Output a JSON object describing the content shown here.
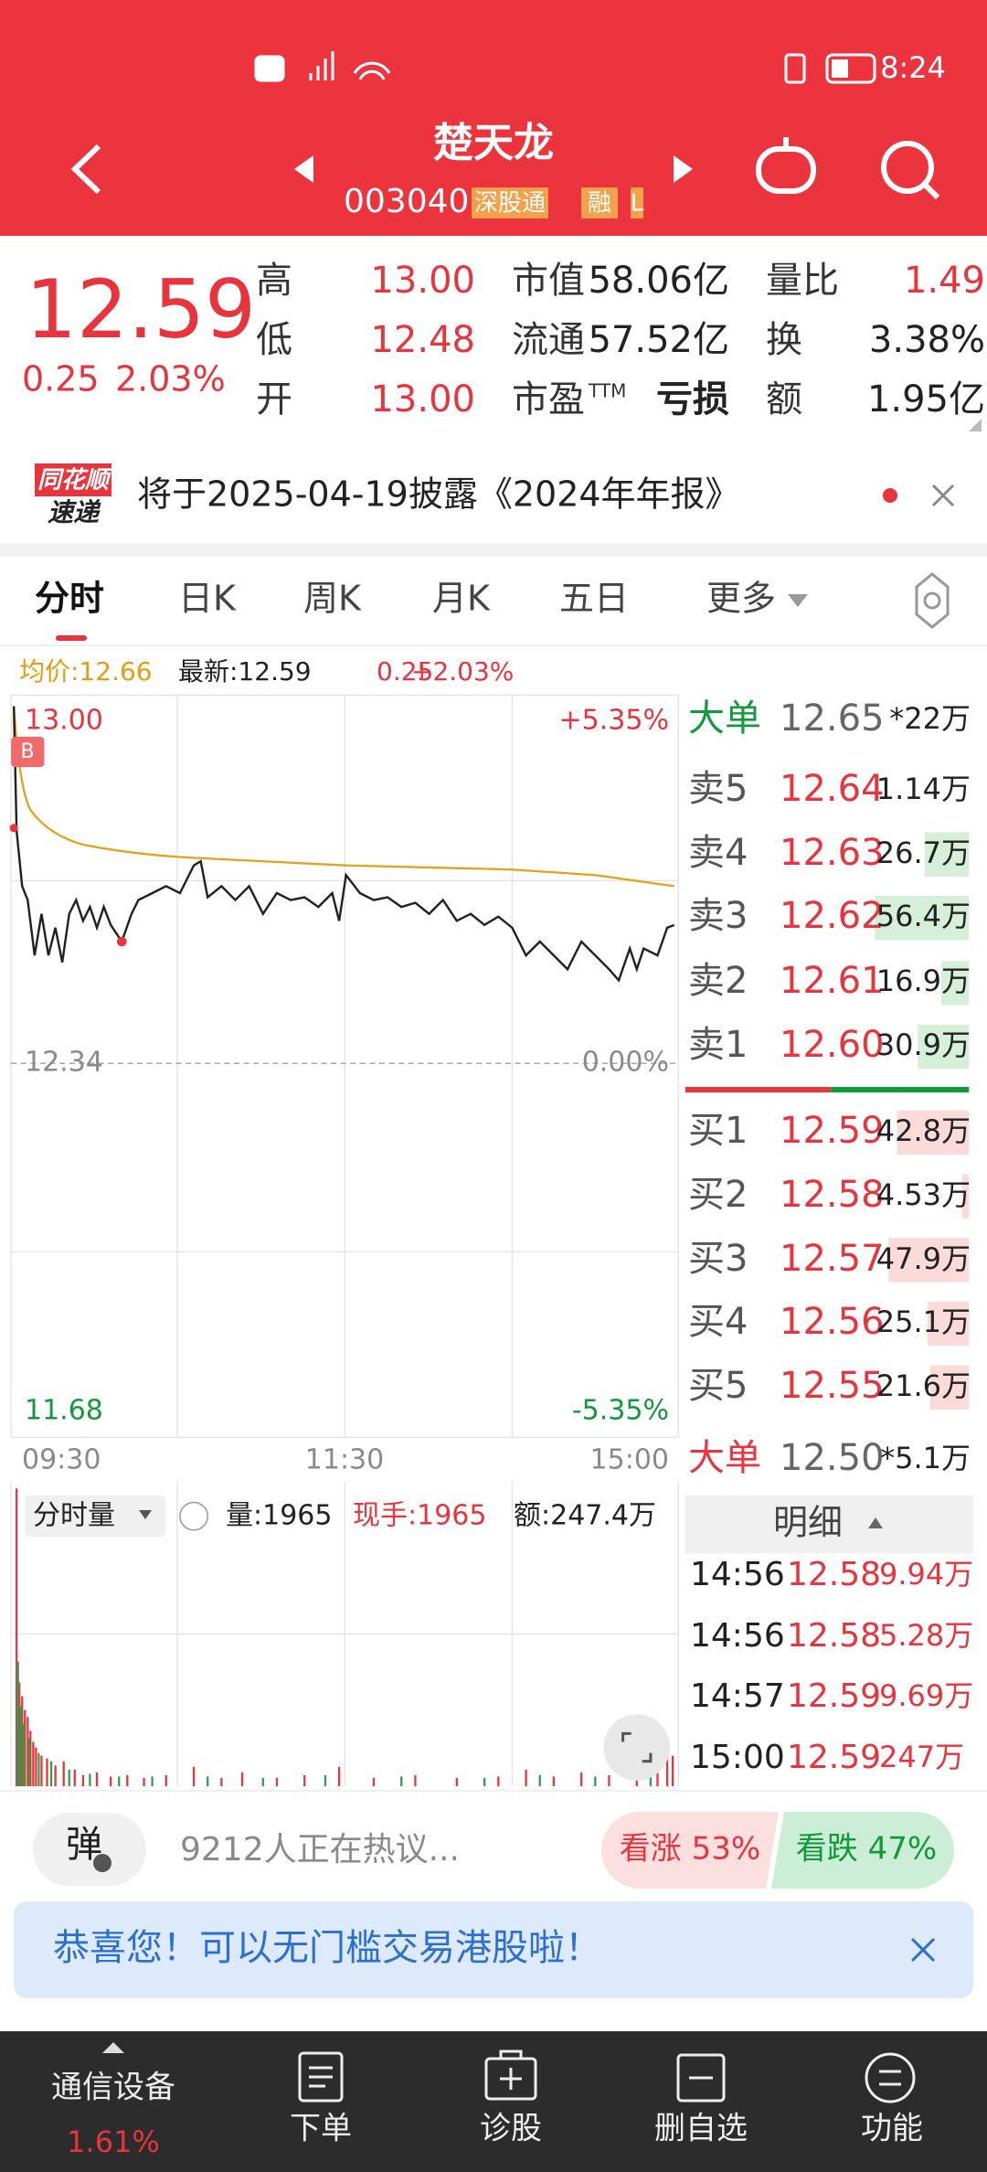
{
  "status_bar": {
    "time": "8:24"
  },
  "header": {
    "name": "楚天龙",
    "code": "003040",
    "tags": [
      "深股通",
      "融",
      "L"
    ]
  },
  "quote": {
    "price": "12.59",
    "change": "0.25",
    "change_pct": "2.03%",
    "stats": [
      {
        "label": "高",
        "value": "13.00",
        "color": "#e8343c"
      },
      {
        "label": "低",
        "value": "12.48",
        "color": "#e8343c"
      },
      {
        "label": "开",
        "value": "13.00",
        "color": "#e8343c"
      },
      {
        "label": "市值",
        "value": "58.06亿",
        "color": "#222222"
      },
      {
        "label": "流通",
        "value": "57.52亿",
        "color": "#222222"
      },
      {
        "label": "市盈",
        "label_sup": "TTM",
        "value": "亏损",
        "color": "#222222"
      },
      {
        "label": "量比",
        "value": "1.49",
        "color": "#e8343c"
      },
      {
        "label": "换",
        "value": "3.38%",
        "color": "#222222"
      },
      {
        "label": "额",
        "value": "1.95亿",
        "color": "#222222"
      }
    ]
  },
  "notice": {
    "badge": [
      "同花顺",
      "速递"
    ],
    "text": "将于2025-04-19披露《2024年年报》"
  },
  "tabs": {
    "items": [
      "分时",
      "日K",
      "周K",
      "月K",
      "五日",
      "更多"
    ],
    "active": 0
  },
  "chart": {
    "avg_label": "均价:12.66",
    "latest_label": "最新:12.59",
    "change": "0.25",
    "change_pct": "+2.03%",
    "y_labels": {
      "top": "13.00",
      "mid": "12.34",
      "bottom": "11.68"
    },
    "pct_labels": {
      "top": "+5.35%",
      "mid": "0.00%",
      "bottom": "-5.35%"
    },
    "times": [
      "09:30",
      "11:30",
      "15:00"
    ],
    "marker": "B"
  },
  "volume": {
    "selector": "分时量",
    "volume": "量:1965",
    "hand": "现手:1965",
    "amount": "额:247.4万"
  },
  "order_book": {
    "big_sell": {
      "label": "大单",
      "price": "12.65",
      "size": "*22万"
    },
    "asks": [
      {
        "label": "卖5",
        "price": "12.64",
        "size": "1.14万"
      },
      {
        "label": "卖4",
        "price": "12.63",
        "size": "26.7万"
      },
      {
        "label": "卖3",
        "price": "12.62",
        "size": "56.4万"
      },
      {
        "label": "卖2",
        "price": "12.61",
        "size": "16.9万"
      },
      {
        "label": "卖1",
        "price": "12.60",
        "size": "30.9万"
      }
    ],
    "bids": [
      {
        "label": "买1",
        "price": "12.59",
        "size": "42.8万"
      },
      {
        "label": "买2",
        "price": "12.58",
        "size": "4.53万"
      },
      {
        "label": "买3",
        "price": "12.57",
        "size": "47.9万"
      },
      {
        "label": "买4",
        "price": "12.56",
        "size": "25.1万"
      },
      {
        "label": "买5",
        "price": "12.55",
        "size": "21.6万"
      }
    ],
    "big_buy": {
      "label": "大单",
      "price": "12.50",
      "size": "*5.1万"
    }
  },
  "trades": {
    "title": "明细",
    "rows": [
      {
        "time": "14:56",
        "price": "12.58",
        "size": "9.94万"
      },
      {
        "time": "14:56",
        "price": "12.58",
        "size": "5.28万"
      },
      {
        "time": "14:57",
        "price": "12.59",
        "size": "9.69万"
      },
      {
        "time": "15:00",
        "price": "12.59",
        "size": "247万"
      }
    ]
  },
  "discussion": {
    "button": "弹",
    "text": "9212人正在热议...",
    "bull": "看涨 53%",
    "bear": "看跌 47%"
  },
  "banner": {
    "text": "恭喜您！可以无门槛交易港股啦！"
  },
  "nav": {
    "sector": "通信设备",
    "sector_change": "1.61%",
    "items": [
      "下单",
      "诊股",
      "删自选",
      "功能"
    ]
  }
}
